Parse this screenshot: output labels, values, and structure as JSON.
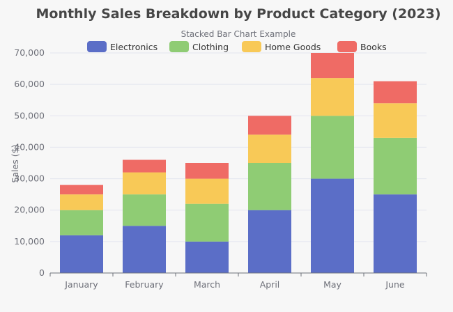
{
  "chart_data": {
    "type": "bar",
    "stacked": true,
    "title": "Monthly Sales Breakdown by Product Category (2023)",
    "subtitle": "Stacked Bar Chart Example",
    "xlabel": "",
    "ylabel": "Sales ($)",
    "ylim": [
      0,
      70000
    ],
    "yticks": [
      "0",
      "10,000",
      "20,000",
      "30,000",
      "40,000",
      "50,000",
      "60,000",
      "70,000"
    ],
    "grid": true,
    "legend_position": "top",
    "categories": [
      "January",
      "February",
      "March",
      "April",
      "May",
      "June"
    ],
    "series": [
      {
        "name": "Electronics",
        "color": "#5b6ec7",
        "values": [
          12000,
          15000,
          10000,
          20000,
          30000,
          25000
        ]
      },
      {
        "name": "Clothing",
        "color": "#8fcc74",
        "values": [
          8000,
          10000,
          12000,
          15000,
          20000,
          18000
        ]
      },
      {
        "name": "Home Goods",
        "color": "#f8c957",
        "values": [
          5000,
          7000,
          8000,
          9000,
          12000,
          11000
        ]
      },
      {
        "name": "Books",
        "color": "#ef6b65",
        "values": [
          3000,
          4000,
          5000,
          6000,
          8000,
          7000
        ]
      }
    ]
  }
}
